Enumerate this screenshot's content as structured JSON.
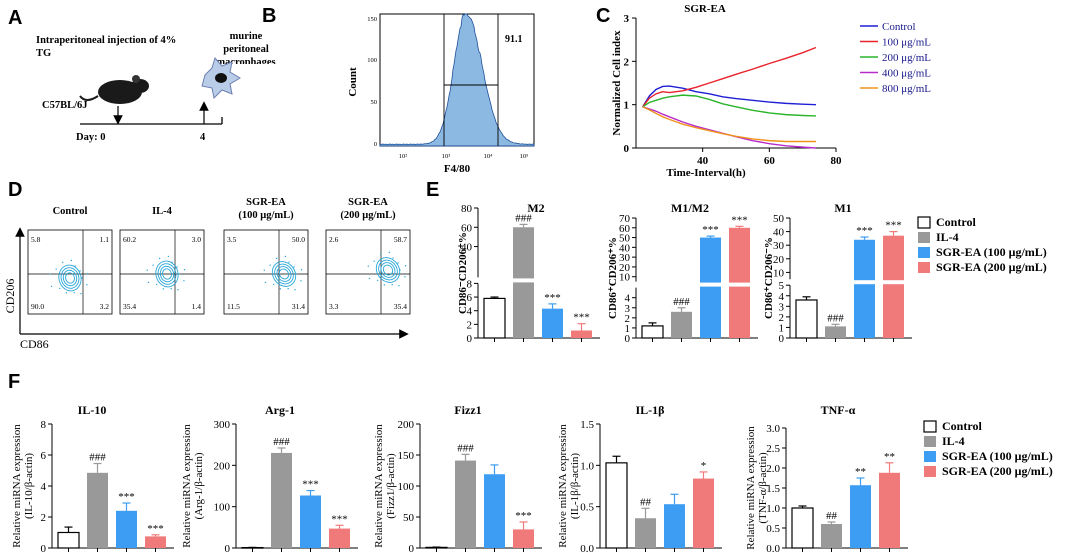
{
  "panels": {
    "A": {
      "letter": "A",
      "injection_text": "Intraperitoneal injection of 4% TG",
      "cells_text": "murine peritoneal macrophages",
      "mouse_label": "C57BL/6J",
      "day_label": "Day: 0",
      "day_end": "4"
    },
    "B": {
      "letter": "B",
      "xlabel": "F4/80",
      "ylabel": "Count",
      "gate_value": "91.1",
      "xticks": [
        "10²",
        "10³",
        "10⁴",
        "10⁵"
      ],
      "yticks": [
        "0",
        "50",
        "100",
        "150"
      ]
    },
    "C": {
      "letter": "C"
    },
    "D": {
      "letter": "D",
      "xlabel": "CD86",
      "ylabel": "CD206",
      "plots": [
        {
          "title": "Control",
          "quadrants": [
            "5.8",
            "1.1",
            "90.0",
            "3.2"
          ]
        },
        {
          "title": "IL-4",
          "quadrants": [
            "60.2",
            "3.0",
            "35.4",
            "1.4"
          ]
        },
        {
          "title": "SGR-EA (100 μg/mL)",
          "quadrants": [
            "3.5",
            "50.0",
            "11.5",
            "31.4"
          ]
        },
        {
          "title": "SGR-EA (200 μg/mL)",
          "quadrants": [
            "2.6",
            "58.7",
            "3.3",
            "35.4"
          ]
        }
      ]
    },
    "E": {
      "letter": "E",
      "legend": [
        "Control",
        "IL-4",
        "SGR-EA (100 μg/mL)",
        "SGR-EA (200 μg/mL)"
      ]
    },
    "F": {
      "letter": "F",
      "legend": [
        "Control",
        "IL-4",
        "SGR-EA (100 μg/mL)",
        "SGR-EA (200 μg/mL)"
      ]
    }
  },
  "colors": {
    "control": "#ffffff",
    "il4": "#999999",
    "ea100": "#3d9df2",
    "ea200": "#f07a7a",
    "flow": "#2aa6d8",
    "hist": "#5b9bd5"
  },
  "chart_data": [
    {
      "id": "C",
      "type": "line",
      "title": "SGR-EA",
      "xlabel": "Time-Interval(h)",
      "ylabel": "Normalized  Cell index",
      "xlim": [
        20,
        80
      ],
      "ylim": [
        0,
        3
      ],
      "xticks": [
        40,
        60,
        80
      ],
      "yticks": [
        0,
        1,
        2,
        3
      ],
      "series": [
        {
          "name": "Control",
          "color": "#1f1fd6",
          "x": [
            22,
            24,
            26,
            28,
            30,
            34,
            38,
            42,
            46,
            50,
            55,
            60,
            65,
            70,
            74
          ],
          "y": [
            0.95,
            1.2,
            1.35,
            1.42,
            1.43,
            1.38,
            1.3,
            1.25,
            1.18,
            1.14,
            1.1,
            1.06,
            1.03,
            1.01,
            1.0
          ]
        },
        {
          "name": "100 μg/mL",
          "color": "#e8232b",
          "x": [
            22,
            24,
            26,
            28,
            30,
            34,
            38,
            42,
            46,
            50,
            55,
            60,
            65,
            70,
            74
          ],
          "y": [
            0.95,
            1.15,
            1.25,
            1.3,
            1.28,
            1.32,
            1.4,
            1.5,
            1.6,
            1.7,
            1.82,
            1.95,
            2.07,
            2.2,
            2.32
          ]
        },
        {
          "name": "200 μg/mL",
          "color": "#2bb52b",
          "x": [
            22,
            24,
            26,
            28,
            30,
            34,
            38,
            42,
            46,
            50,
            55,
            60,
            65,
            70,
            74
          ],
          "y": [
            0.95,
            1.05,
            1.1,
            1.15,
            1.18,
            1.22,
            1.2,
            1.12,
            1.02,
            0.95,
            0.87,
            0.81,
            0.77,
            0.75,
            0.74
          ]
        },
        {
          "name": "400 μg/mL",
          "color": "#b82bc9",
          "x": [
            22,
            24,
            26,
            28,
            30,
            34,
            38,
            42,
            46,
            50,
            55,
            60,
            65,
            70,
            74
          ],
          "y": [
            0.95,
            0.9,
            0.85,
            0.78,
            0.72,
            0.6,
            0.5,
            0.42,
            0.34,
            0.26,
            0.17,
            0.1,
            0.05,
            0.02,
            0.0
          ]
        },
        {
          "name": "800 μg/mL",
          "color": "#f0931a",
          "x": [
            22,
            24,
            26,
            28,
            30,
            34,
            38,
            42,
            46,
            50,
            55,
            60,
            65,
            70,
            74
          ],
          "y": [
            0.95,
            0.88,
            0.8,
            0.72,
            0.66,
            0.55,
            0.47,
            0.4,
            0.33,
            0.27,
            0.21,
            0.17,
            0.15,
            0.15,
            0.15
          ]
        }
      ]
    },
    {
      "id": "E-M2",
      "type": "bar",
      "title": "M2",
      "ylabel": "CD86⁻CD206⁺%",
      "categories": [
        "Control",
        "IL-4",
        "SGR-EA (100 μg/mL)",
        "SGR-EA (200 μg/mL)"
      ],
      "values": [
        5.8,
        60,
        4.3,
        1.1
      ],
      "errors": [
        0.2,
        3,
        0.7,
        1.0
      ],
      "annotations": [
        "",
        "###",
        "***",
        "***"
      ],
      "broken_axis": {
        "lower": [
          0,
          8
        ],
        "upper": [
          8,
          80
        ],
        "lower_ticks": [
          0,
          2,
          4,
          6,
          8
        ],
        "upper_ticks": [
          40,
          60,
          80
        ]
      }
    },
    {
      "id": "E-M1M2",
      "type": "bar",
      "title": "M1/M2",
      "ylabel": "CD86⁺CD206⁺%",
      "categories": [
        "Control",
        "IL-4",
        "SGR-EA (100 μg/mL)",
        "SGR-EA (200 μg/mL)"
      ],
      "values": [
        1.2,
        2.6,
        50,
        60
      ],
      "errors": [
        0.3,
        0.4,
        1.5,
        1.5
      ],
      "annotations": [
        "",
        "###",
        "***",
        "***"
      ],
      "broken_axis": {
        "lower": [
          0,
          5
        ],
        "upper": [
          5,
          70
        ],
        "lower_ticks": [
          0,
          1,
          2,
          3,
          4
        ],
        "upper_ticks": [
          10,
          20,
          30,
          40,
          50,
          60,
          70
        ]
      }
    },
    {
      "id": "E-M1",
      "type": "bar",
      "title": "M1",
      "ylabel": "CD86⁺CD206⁻%",
      "categories": [
        "Control",
        "IL-4",
        "SGR-EA (100 μg/mL)",
        "SGR-EA (200 μg/mL)"
      ],
      "values": [
        3.6,
        1.1,
        34,
        37
      ],
      "errors": [
        0.3,
        0.2,
        2,
        3
      ],
      "annotations": [
        "",
        "###",
        "***",
        "***"
      ],
      "broken_axis": {
        "lower": [
          0,
          5
        ],
        "upper": [
          5,
          50
        ],
        "lower_ticks": [
          0,
          1,
          2,
          3,
          4,
          5
        ],
        "upper_ticks": [
          10,
          20,
          30,
          40,
          50
        ]
      }
    },
    {
      "id": "F-IL10",
      "type": "bar",
      "title": "IL-10",
      "ylabel": "Relative miRNA expression",
      "ylabel2": "(IL-10/β-actin)",
      "categories": [
        "Control",
        "IL-4",
        "SGR-EA (100 μg/mL)",
        "SGR-EA (200 μg/mL)"
      ],
      "values": [
        1.0,
        4.85,
        2.4,
        0.75
      ],
      "errors": [
        0.35,
        0.6,
        0.5,
        0.1
      ],
      "annotations": [
        "",
        "###",
        "***",
        "***"
      ],
      "ylim": [
        0,
        8
      ],
      "yticks": [
        0,
        2,
        4,
        6,
        8
      ]
    },
    {
      "id": "F-Arg1",
      "type": "bar",
      "title": "Arg-1",
      "ylabel": "Relative miRNA expression",
      "ylabel2": "(Arg-1/β-actin)",
      "categories": [
        "Control",
        "IL-4",
        "SGR-EA (100 μg/mL)",
        "SGR-EA (200 μg/mL)"
      ],
      "values": [
        1,
        230,
        127,
        47
      ],
      "errors": [
        0.5,
        12,
        12,
        8
      ],
      "annotations": [
        "",
        "###",
        "***",
        "***"
      ],
      "ylim": [
        0,
        300
      ],
      "yticks": [
        0,
        100,
        200,
        300
      ]
    },
    {
      "id": "F-Fizz1",
      "type": "bar",
      "title": "Fizz1",
      "ylabel": "Relative miRNA expression",
      "ylabel2": "(Fizz1/β-actin)",
      "categories": [
        "Control",
        "IL-4",
        "SGR-EA (100 μg/mL)",
        "SGR-EA (200 μg/mL)"
      ],
      "values": [
        1,
        141,
        119,
        30
      ],
      "errors": [
        0.5,
        10,
        15,
        12
      ],
      "annotations": [
        "",
        "###",
        "",
        "***"
      ],
      "ylim": [
        0,
        200
      ],
      "yticks": [
        0,
        50,
        100,
        150,
        200
      ]
    },
    {
      "id": "F-IL1b",
      "type": "bar",
      "title": "IL-1β",
      "ylabel": "Relative miRNA expression",
      "ylabel2": "(IL-1β/β-actin)",
      "categories": [
        "Control",
        "IL-4",
        "SGR-EA (100 μg/mL)",
        "SGR-EA (200 μg/mL)"
      ],
      "values": [
        1.03,
        0.36,
        0.53,
        0.84
      ],
      "errors": [
        0.08,
        0.12,
        0.12,
        0.08
      ],
      "annotations": [
        "",
        "##",
        "",
        "*"
      ],
      "ylim": [
        0,
        1.5
      ],
      "yticks": [
        0.0,
        0.5,
        1.0,
        1.5
      ]
    },
    {
      "id": "F-TNFa",
      "type": "bar",
      "title": "TNF-α",
      "ylabel": "Relative miRNA expression",
      "ylabel2": "(TNF-α/β-actin)",
      "categories": [
        "Control",
        "IL-4",
        "SGR-EA (100 μg/mL)",
        "SGR-EA (200 μg/mL)"
      ],
      "values": [
        1.0,
        0.6,
        1.57,
        1.88
      ],
      "errors": [
        0.05,
        0.05,
        0.18,
        0.25
      ],
      "annotations": [
        "",
        "##",
        "**",
        "**"
      ],
      "ylim": [
        0,
        3.0
      ],
      "yticks": [
        0.0,
        0.5,
        1.0,
        1.5,
        2.0,
        2.5,
        3.0
      ]
    }
  ]
}
